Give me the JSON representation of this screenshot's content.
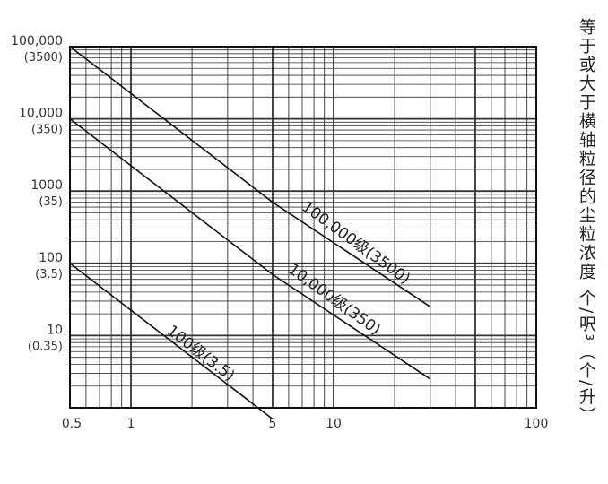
{
  "chart_data": {
    "type": "line",
    "title": "",
    "xlabel": "",
    "ylabel": "等于或大于横轴粒径的尘粒浓度 个/呎³（个/升）",
    "x_scale": "log",
    "y_scale": "log",
    "xlim": [
      0.5,
      100
    ],
    "ylim": [
      1,
      100000
    ],
    "grid": true,
    "x_ticks": [
      {
        "value": 0.5,
        "label": "0.5"
      },
      {
        "value": 1,
        "label": "1"
      },
      {
        "value": 5,
        "label": "5"
      },
      {
        "value": 10,
        "label": "10"
      },
      {
        "value": 100,
        "label": "100"
      }
    ],
    "y_ticks": [
      {
        "value": 100000,
        "label": "100,000",
        "sub": "(3500)"
      },
      {
        "value": 10000,
        "label": "10,000",
        "sub": "(350)"
      },
      {
        "value": 1000,
        "label": "1000",
        "sub": "(35)"
      },
      {
        "value": 100,
        "label": "100",
        "sub": "(3.5)"
      },
      {
        "value": 10,
        "label": "10",
        "sub": "(0.35)"
      }
    ],
    "series": [
      {
        "name": "100,000级(3500)",
        "x": [
          0.5,
          5,
          30
        ],
        "y": [
          100000,
          700,
          25
        ]
      },
      {
        "name": "10,000级(350)",
        "x": [
          0.5,
          5,
          30
        ],
        "y": [
          10000,
          70,
          2.5
        ]
      },
      {
        "name": "100级(3.5)",
        "x": [
          0.5,
          5
        ],
        "y": [
          100,
          0.7
        ]
      }
    ]
  }
}
